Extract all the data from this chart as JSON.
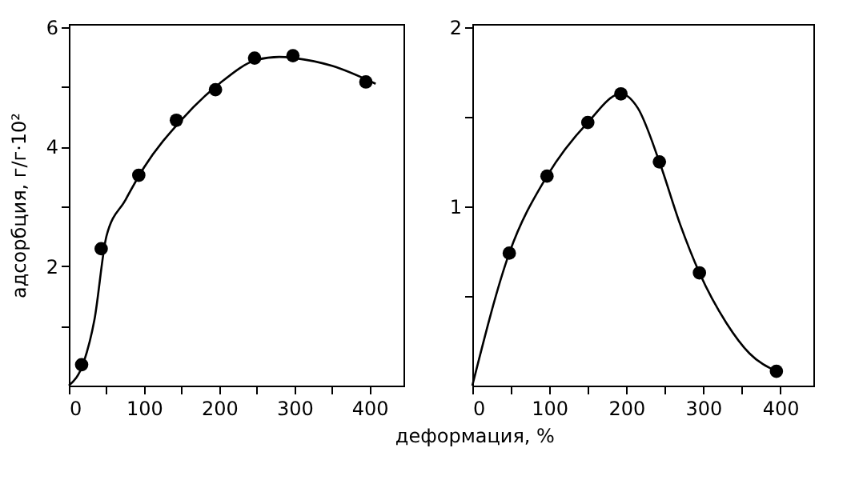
{
  "chart_data": [
    {
      "type": "scatter",
      "ylabel": "адсорбция, г/г·10²",
      "xlabel": "деформация, %",
      "grid": false,
      "legend": false,
      "xlim": [
        0,
        445
      ],
      "ylim": [
        0,
        6.05
      ],
      "xticks": [
        0,
        {
          "value": 50,
          "label": null
        },
        100,
        {
          "value": 150,
          "label": null
        },
        200,
        {
          "value": 250,
          "label": null
        },
        300,
        {
          "value": 350,
          "label": null
        },
        400
      ],
      "yticks": [
        {
          "value": 1,
          "label": null
        },
        2,
        {
          "value": 3,
          "label": null
        },
        4,
        {
          "value": 5,
          "label": null
        },
        6
      ],
      "series": [
        {
          "marker": "circle",
          "color": "#000000",
          "x": [
            17,
            43,
            93,
            143,
            195,
            247,
            298,
            395
          ],
          "values": [
            0.35,
            2.29,
            3.52,
            4.44,
            4.95,
            5.48,
            5.52,
            5.08
          ]
        },
        {
          "type": "line",
          "marker": "none",
          "color": "#000000",
          "x": [
            0,
            20,
            34,
            50,
            75,
            100,
            150,
            200,
            250,
            280,
            300,
            350,
            408
          ],
          "values": [
            0,
            0.4,
            1.1,
            2.5,
            3.1,
            3.65,
            4.45,
            5.05,
            5.45,
            5.5,
            5.48,
            5.35,
            5.05
          ]
        }
      ]
    },
    {
      "type": "scatter",
      "grid": false,
      "legend": false,
      "xlim": [
        0,
        443
      ],
      "ylim": [
        0,
        2.02
      ],
      "xticks": [
        0,
        {
          "value": 50,
          "label": null
        },
        100,
        {
          "value": 150,
          "label": null
        },
        200,
        {
          "value": 250,
          "label": null
        },
        300,
        {
          "value": 350,
          "label": null
        },
        400
      ],
      "yticks": [
        {
          "value": 0.5,
          "label": null
        },
        1,
        {
          "value": 1.5,
          "label": null
        },
        2
      ],
      "series": [
        {
          "marker": "circle",
          "color": "#000000",
          "x": [
            48,
            97,
            150,
            193,
            243,
            295,
            395
          ],
          "values": [
            0.74,
            1.17,
            1.47,
            1.63,
            1.25,
            0.63,
            0.08
          ]
        },
        {
          "type": "line",
          "marker": "none",
          "color": "#000000",
          "x": [
            0,
            48,
            97,
            150,
            193,
            215,
            243,
            270,
            295,
            330,
            360,
            395
          ],
          "values": [
            0,
            0.74,
            1.17,
            1.47,
            1.63,
            1.55,
            1.25,
            0.9,
            0.63,
            0.35,
            0.18,
            0.08
          ]
        }
      ]
    }
  ]
}
